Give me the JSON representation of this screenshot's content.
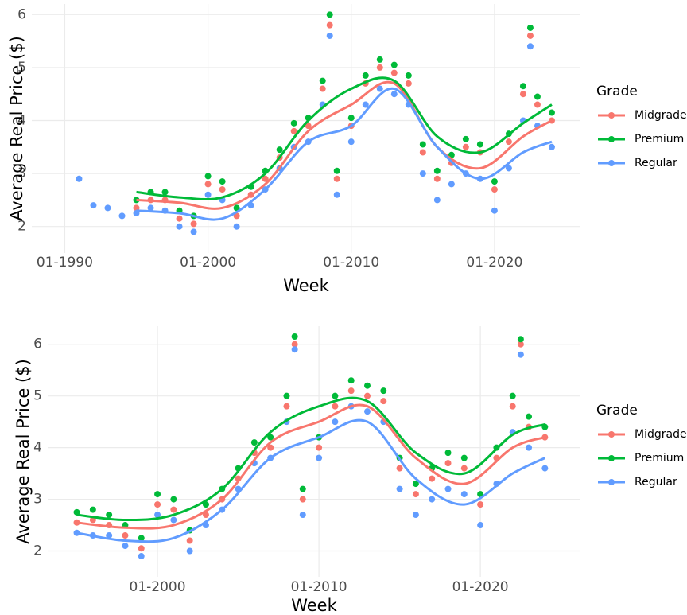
{
  "chart_data": [
    {
      "type": "scatter",
      "x_label": "Week",
      "y_label": "Average Real Price ($)",
      "legend_title": "Grade",
      "legend": "right",
      "grid": true,
      "xlim": [
        1987.7,
        2026
      ],
      "ylim": [
        1.5,
        6.2
      ],
      "xticks": [
        {
          "value": 1990,
          "label": "01-1990"
        },
        {
          "value": 2000,
          "label": "01-2000"
        },
        {
          "value": 2010,
          "label": "01-2010"
        },
        {
          "value": 2020,
          "label": "01-2020"
        }
      ],
      "yticks": [
        2,
        3,
        4,
        5,
        6
      ],
      "x": [
        1991,
        1992,
        1993,
        1994,
        1995,
        1996,
        1997,
        1998,
        1999,
        2000,
        2001,
        2002,
        2003,
        2004,
        2005,
        2006,
        2007,
        2008,
        2008.5,
        2009,
        2010,
        2011,
        2012,
        2013,
        2014,
        2015,
        2016,
        2017,
        2018,
        2019,
        2020,
        2021,
        2022,
        2022.5,
        2023,
        2024
      ],
      "trend_x": [
        1995,
        1998,
        2001,
        2004,
        2007,
        2010,
        2013,
        2016,
        2019,
        2022,
        2024
      ],
      "series": [
        {
          "name": "Midgrade",
          "color": "#F8766D",
          "values": [
            null,
            null,
            null,
            null,
            2.35,
            2.5,
            2.5,
            2.15,
            2.05,
            2.8,
            2.7,
            2.2,
            2.6,
            2.9,
            3.3,
            3.8,
            3.9,
            4.6,
            5.8,
            2.9,
            3.9,
            4.7,
            5.0,
            4.9,
            4.7,
            3.4,
            2.9,
            3.2,
            3.5,
            3.4,
            2.7,
            3.6,
            4.5,
            5.6,
            4.3,
            4.0
          ],
          "trend": [
            2.5,
            2.45,
            2.35,
            2.8,
            3.8,
            4.3,
            4.7,
            3.5,
            3.1,
            3.7,
            4.0
          ]
        },
        {
          "name": "Premium",
          "color": "#00BA38",
          "values": [
            null,
            null,
            null,
            null,
            2.5,
            2.65,
            2.65,
            2.3,
            2.2,
            2.95,
            2.85,
            2.35,
            2.75,
            3.05,
            3.45,
            3.95,
            4.05,
            4.75,
            6.0,
            3.05,
            4.05,
            4.85,
            5.15,
            5.05,
            4.85,
            3.55,
            3.05,
            3.35,
            3.65,
            3.55,
            2.85,
            3.75,
            4.65,
            5.75,
            4.45,
            4.15
          ],
          "trend": [
            2.65,
            2.55,
            2.55,
            3.0,
            4.0,
            4.6,
            4.75,
            3.7,
            3.4,
            3.95,
            4.3
          ]
        },
        {
          "name": "Regular",
          "color": "#619CFF",
          "values": [
            2.9,
            2.4,
            2.35,
            2.2,
            2.25,
            2.35,
            2.3,
            2.0,
            1.9,
            2.6,
            2.5,
            2.0,
            2.4,
            2.7,
            3.1,
            3.5,
            3.6,
            4.3,
            5.6,
            2.6,
            3.6,
            4.3,
            4.6,
            4.5,
            4.3,
            3.0,
            2.5,
            2.8,
            3.0,
            2.9,
            2.3,
            3.1,
            4.0,
            5.4,
            3.9,
            3.5
          ],
          "trend": [
            2.3,
            2.25,
            2.15,
            2.7,
            3.6,
            3.9,
            4.6,
            3.5,
            2.9,
            3.4,
            3.6
          ]
        }
      ]
    },
    {
      "type": "scatter",
      "x_label": "Week",
      "y_label": "Average Real Price ($)",
      "legend_title": "Grade",
      "legend": "right",
      "grid": true,
      "xlim": [
        1993.2,
        2026.2
      ],
      "ylim": [
        1.5,
        6.35
      ],
      "xticks": [
        {
          "value": 2000,
          "label": "01-2000"
        },
        {
          "value": 2010,
          "label": "01-2010"
        },
        {
          "value": 2020,
          "label": "01-2020"
        }
      ],
      "yticks": [
        2,
        3,
        4,
        5,
        6
      ],
      "x": [
        1995,
        1996,
        1997,
        1998,
        1999,
        2000,
        2001,
        2002,
        2003,
        2004,
        2005,
        2006,
        2007,
        2008,
        2008.5,
        2009,
        2010,
        2011,
        2012,
        2013,
        2014,
        2015,
        2016,
        2017,
        2018,
        2019,
        2020,
        2021,
        2022,
        2022.5,
        2023,
        2024
      ],
      "trend_x": [
        1995,
        1998,
        2001,
        2004,
        2007,
        2010,
        2013,
        2016,
        2019,
        2022,
        2024
      ],
      "series": [
        {
          "name": "Midgrade",
          "color": "#F8766D",
          "values": [
            2.55,
            2.6,
            2.5,
            2.3,
            2.05,
            2.9,
            2.8,
            2.2,
            2.7,
            3.0,
            3.4,
            3.9,
            4.0,
            4.8,
            6.0,
            3.0,
            4.0,
            4.8,
            5.1,
            5.0,
            4.9,
            3.6,
            3.1,
            3.4,
            3.7,
            3.6,
            2.9,
            3.8,
            4.8,
            6.0,
            4.4,
            4.2
          ],
          "trend": [
            2.55,
            2.45,
            2.5,
            3.0,
            4.1,
            4.5,
            4.8,
            3.8,
            3.3,
            4.0,
            4.2
          ]
        },
        {
          "name": "Premium",
          "color": "#00BA38",
          "values": [
            2.75,
            2.8,
            2.7,
            2.5,
            2.25,
            3.1,
            3.0,
            2.4,
            2.9,
            3.2,
            3.6,
            4.1,
            4.2,
            5.0,
            6.15,
            3.2,
            4.2,
            5.0,
            5.3,
            5.2,
            5.1,
            3.8,
            3.3,
            3.6,
            3.9,
            3.8,
            3.1,
            4.0,
            5.0,
            6.1,
            4.6,
            4.4
          ],
          "trend": [
            2.7,
            2.6,
            2.7,
            3.2,
            4.3,
            4.8,
            4.9,
            3.9,
            3.5,
            4.25,
            4.45
          ]
        },
        {
          "name": "Regular",
          "color": "#619CFF",
          "values": [
            2.35,
            2.3,
            2.3,
            2.1,
            1.9,
            2.7,
            2.6,
            2.0,
            2.5,
            2.8,
            3.2,
            3.7,
            3.8,
            4.5,
            5.9,
            2.7,
            3.8,
            4.5,
            4.8,
            4.7,
            4.5,
            3.2,
            2.7,
            3.0,
            3.2,
            3.1,
            2.5,
            3.3,
            4.3,
            5.8,
            4.0,
            3.6
          ],
          "trend": [
            2.35,
            2.2,
            2.25,
            2.8,
            3.8,
            4.2,
            4.5,
            3.4,
            2.9,
            3.5,
            3.8
          ]
        }
      ]
    }
  ]
}
